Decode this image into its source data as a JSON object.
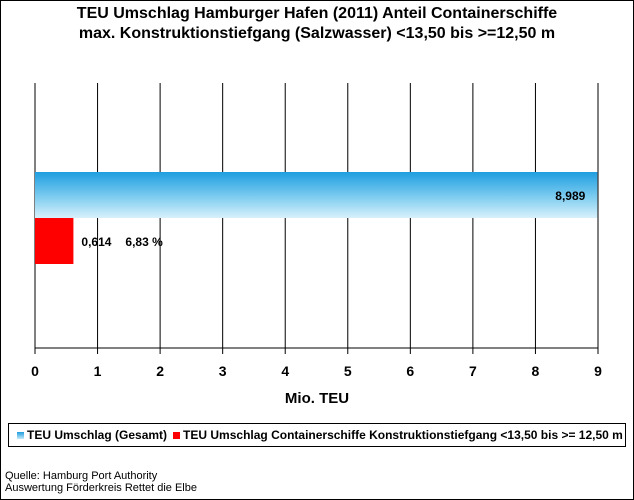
{
  "chart_data": {
    "type": "bar",
    "orientation": "horizontal",
    "title_line1": "TEU Umschlag Hamburger Hafen (2011) Anteil Containerschiffe",
    "title_line2": "max. Konstruktionstiefgang (Salzwasser) <13,50 bis >=12,50 m",
    "xlabel": "Mio. TEU",
    "xlim": [
      0,
      9
    ],
    "x_ticks": [
      "0",
      "1",
      "2",
      "3",
      "4",
      "5",
      "6",
      "7",
      "8",
      "9"
    ],
    "grid": "vertical",
    "legend_position": "bottom",
    "series": [
      {
        "name": "TEU Umschlag (Gesamt)",
        "value": 8.989,
        "label": "8,989",
        "color": "#1e9ee0"
      },
      {
        "name": "TEU Umschlag Containerschiffe Konstruktionstiefgang <13,50 bis >= 12,50 m",
        "value": 0.614,
        "label": "0,614",
        "share_label": "6,83 %",
        "color": "#ff0000"
      }
    ]
  },
  "source": {
    "line1": "Quelle: Hamburg Port Authority",
    "line2": "Auswertung Förderkreis Rettet die Elbe"
  }
}
